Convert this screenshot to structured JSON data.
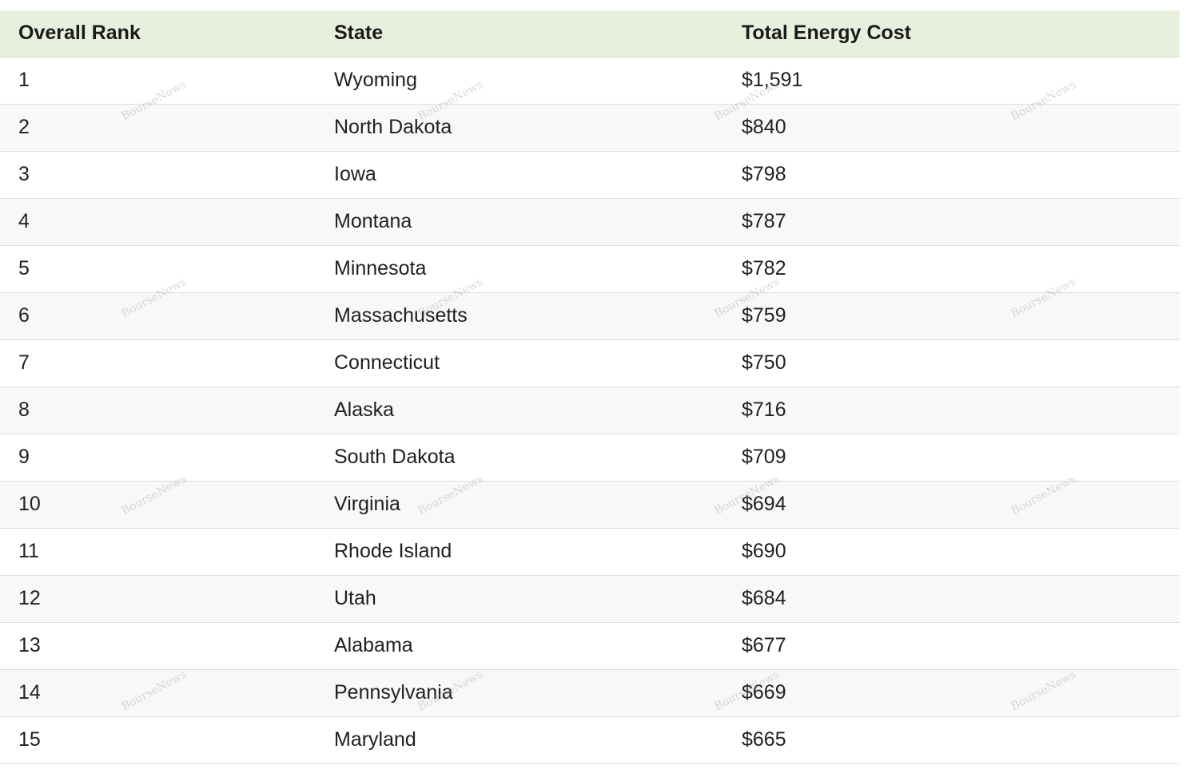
{
  "table": {
    "headers": [
      "Overall Rank",
      "State",
      "Total Energy Cost"
    ],
    "rows": [
      [
        "1",
        "Wyoming",
        "$1,591"
      ],
      [
        "2",
        "North Dakota",
        "$840"
      ],
      [
        "3",
        "Iowa",
        "$798"
      ],
      [
        "4",
        "Montana",
        "$787"
      ],
      [
        "5",
        "Minnesota",
        "$782"
      ],
      [
        "6",
        "Massachusetts",
        "$759"
      ],
      [
        "7",
        "Connecticut",
        "$750"
      ],
      [
        "8",
        "Alaska",
        "$716"
      ],
      [
        "9",
        "South Dakota",
        "$709"
      ],
      [
        "10",
        "Virginia",
        "$694"
      ],
      [
        "11",
        "Rhode Island",
        "$690"
      ],
      [
        "12",
        "Utah",
        "$684"
      ],
      [
        "13",
        "Alabama",
        "$677"
      ],
      [
        "14",
        "Pennsylvania",
        "$669"
      ],
      [
        "15",
        "Maryland",
        "$665"
      ]
    ]
  },
  "watermark": {
    "text": "BourseNews"
  },
  "colors": {
    "header_bg": "#e8efdc",
    "row_alt_bg": "#f8f8f8",
    "row_border": "#dedede"
  }
}
